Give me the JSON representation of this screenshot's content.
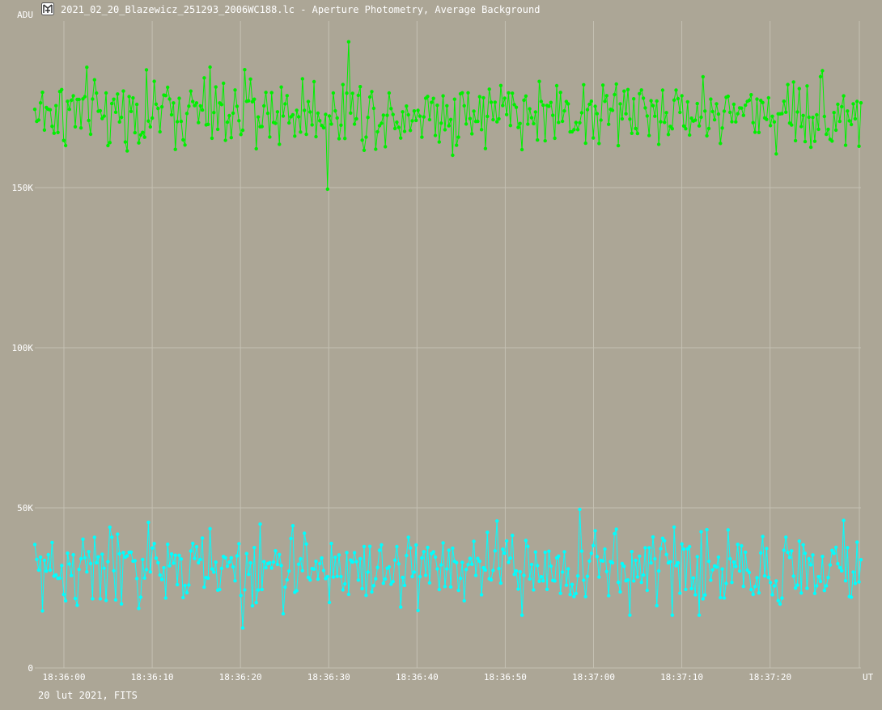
{
  "window": {
    "title": "2021_02_20_Blazewicz_251293_2006WC188.lc - Aperture Photometry, Average Background",
    "icon": "app-logo-icon"
  },
  "footer": {
    "date_label": "20 lut 2021, FITS"
  },
  "colors": {
    "background": "#aca696",
    "grid": "#c4c0b3",
    "target": "#00f000",
    "comparison": "#00ffff",
    "text": "#ffffff"
  },
  "chart_data": {
    "type": "line",
    "title": "",
    "xlabel": "UT",
    "ylabel": "ADU",
    "x_range": [
      "18:35:56.7",
      "18:37:30.3"
    ],
    "ylim": [
      0,
      202000
    ],
    "y_ticks": [
      0,
      50000,
      100000,
      150000
    ],
    "y_tick_labels": [
      "0",
      "50K",
      "100K",
      "150K"
    ],
    "x_tick_labels": [
      "18:36:00",
      "18:36:10",
      "18:36:20",
      "18:36:30",
      "18:36:40",
      "18:36:50",
      "18:37:00",
      "18:37:10",
      "18:37:20"
    ],
    "grid": true,
    "legend": "none",
    "series": [
      {
        "color": "#00f000",
        "points": 430,
        "baseline_adu": 173500,
        "scatter_adu": 7000,
        "min": {
          "time": "18:36:29.8",
          "adu": 149500
        },
        "max": {
          "time": "18:36:32.3",
          "adu": 195500
        }
      },
      {
        "color": "#00ffff",
        "points": 430,
        "baseline_adu": 31000,
        "scatter_adu": 7500,
        "min": {
          "time": "18:36:20.2",
          "adu": 12500
        },
        "max": {
          "time": "18:36:58.4",
          "adu": 49500
        }
      }
    ]
  }
}
